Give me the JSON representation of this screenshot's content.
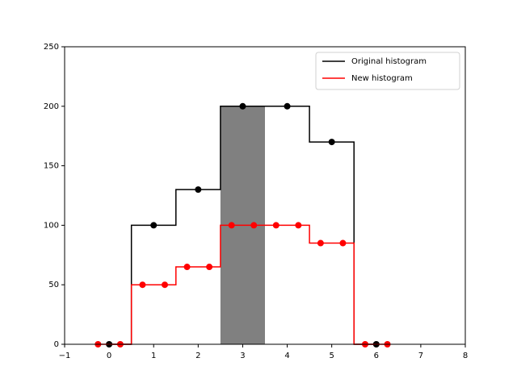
{
  "chart_data": {
    "type": "line",
    "step": "mid",
    "series": [
      {
        "name": "Original histogram",
        "color": "#000000",
        "x": [
          0,
          1,
          2,
          3,
          4,
          5,
          6
        ],
        "values": [
          0,
          100,
          130,
          200,
          200,
          170,
          0
        ]
      },
      {
        "name": "New histogram",
        "color": "#ff0000",
        "x": [
          -0.25,
          0.25,
          0.75,
          1.25,
          1.75,
          2.25,
          2.75,
          3.25,
          3.75,
          4.25,
          4.75,
          5.25,
          5.75,
          6.25
        ],
        "values": [
          0,
          0,
          50,
          50,
          65,
          65,
          100,
          100,
          100,
          100,
          85,
          85,
          0,
          0
        ]
      }
    ],
    "highlight_bar": {
      "x": 3,
      "value": 200,
      "width": 1,
      "color": "#808080"
    },
    "xlim": [
      -1,
      8
    ],
    "xticks": [
      {
        "value": -1,
        "label": "−1"
      },
      0,
      1,
      2,
      3,
      4,
      5,
      6,
      7,
      8
    ],
    "ylim": [
      0,
      250
    ],
    "yticks": [
      0,
      50,
      100,
      150,
      200,
      250
    ],
    "legend": "upper right"
  }
}
